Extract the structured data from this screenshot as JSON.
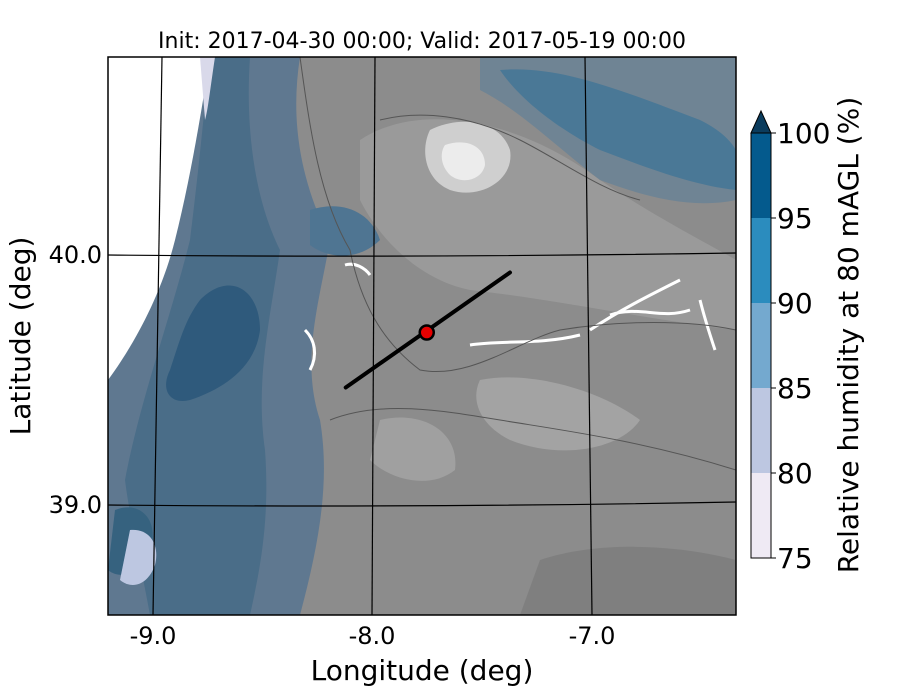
{
  "title": "Init: 2017-04-30 00:00; Valid: 2017-05-19 00:00",
  "axes": {
    "xlabel": "Longitude (deg)",
    "ylabel": "Latitude (deg)",
    "x_ticks": [
      "-9.0",
      "-8.0",
      "-7.0"
    ],
    "y_ticks": [
      "40.0",
      "39.0"
    ]
  },
  "colorbar": {
    "label": "Relative humidity at 80 mAGL (%)",
    "ticks": [
      "75",
      "80",
      "85",
      "90",
      "95",
      "100"
    ],
    "levels": [
      75,
      80,
      85,
      90,
      95,
      100
    ],
    "extend": "max",
    "colors": [
      "#efeaf4",
      "#bdc7e1",
      "#74a9cf",
      "#2b8cbe",
      "#045a8d",
      "#0b3c5d"
    ]
  },
  "map": {
    "terrain_color": "#8c8c8c",
    "lon_range": [
      -9.2,
      -6.35
    ],
    "lat_range": [
      38.55,
      40.8
    ],
    "transect": {
      "start": [
        -8.12,
        39.47
      ],
      "end": [
        -7.37,
        39.93
      ],
      "color": "#000000"
    },
    "site_marker": {
      "lon": -7.75,
      "lat": 39.69,
      "color": "#e60000"
    }
  }
}
